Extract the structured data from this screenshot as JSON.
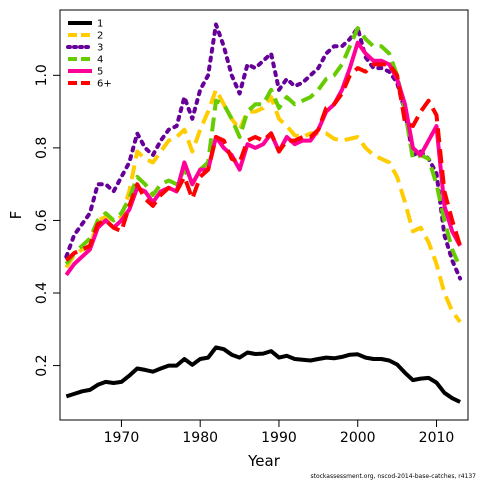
{
  "chart_data": {
    "type": "line",
    "xlabel": "Year",
    "ylabel": "F",
    "xlim": [
      1962.2,
      2014.0
    ],
    "ylim": [
      0.05,
      1.18
    ],
    "x_ticks": [
      1970,
      1980,
      1990,
      2000,
      2010
    ],
    "y_ticks": [
      0.2,
      0.4,
      0.6,
      0.8,
      1.0
    ],
    "x_tick_labels": [
      "1970",
      "1980",
      "1990",
      "2000",
      "2010"
    ],
    "y_tick_labels": [
      "0.2",
      "0.4",
      "0.6",
      "0.8",
      "1.0"
    ],
    "legend_position": "top-left",
    "footnote": "stockassessment.org, nscod-2014-base-catches, r4137",
    "x": [
      1963,
      1964,
      1965,
      1966,
      1967,
      1968,
      1969,
      1970,
      1971,
      1972,
      1973,
      1974,
      1975,
      1976,
      1977,
      1978,
      1979,
      1980,
      1981,
      1982,
      1983,
      1984,
      1985,
      1986,
      1987,
      1988,
      1989,
      1990,
      1991,
      1992,
      1993,
      1994,
      1995,
      1996,
      1997,
      1998,
      1999,
      2000,
      2001,
      2002,
      2003,
      2004,
      2005,
      2006,
      2007,
      2008,
      2009,
      2010,
      2011,
      2012,
      2013
    ],
    "series": [
      {
        "name": "1",
        "color": "#000000",
        "dash": "solid",
        "values": [
          0.115,
          0.122,
          0.129,
          0.133,
          0.147,
          0.155,
          0.152,
          0.155,
          0.172,
          0.192,
          0.188,
          0.183,
          0.192,
          0.2,
          0.2,
          0.218,
          0.202,
          0.218,
          0.222,
          0.25,
          0.245,
          0.23,
          0.222,
          0.236,
          0.232,
          0.233,
          0.24,
          0.222,
          0.227,
          0.218,
          0.216,
          0.214,
          0.218,
          0.222,
          0.22,
          0.224,
          0.23,
          0.231,
          0.222,
          0.218,
          0.218,
          0.214,
          0.203,
          0.18,
          0.16,
          0.164,
          0.166,
          0.153,
          0.125,
          0.11,
          0.1
        ]
      },
      {
        "name": "2",
        "color": "#ffcc00",
        "dash": "dashed",
        "values": [
          0.47,
          0.505,
          0.52,
          0.525,
          0.6,
          0.61,
          0.6,
          0.61,
          0.68,
          0.79,
          0.77,
          0.76,
          0.79,
          0.82,
          0.83,
          0.85,
          0.79,
          0.85,
          0.9,
          0.96,
          0.92,
          0.88,
          0.85,
          0.9,
          0.9,
          0.91,
          0.94,
          0.88,
          0.86,
          0.835,
          0.83,
          0.84,
          0.84,
          0.84,
          0.825,
          0.82,
          0.825,
          0.83,
          0.8,
          0.78,
          0.77,
          0.76,
          0.72,
          0.65,
          0.57,
          0.58,
          0.54,
          0.48,
          0.4,
          0.35,
          0.32
        ]
      },
      {
        "name": "3",
        "color": "#660099",
        "dash": "dotted",
        "values": [
          0.5,
          0.56,
          0.59,
          0.62,
          0.7,
          0.7,
          0.68,
          0.72,
          0.76,
          0.84,
          0.8,
          0.78,
          0.82,
          0.85,
          0.86,
          0.94,
          0.88,
          0.96,
          1.0,
          1.14,
          1.08,
          1.0,
          0.95,
          1.03,
          1.02,
          1.04,
          1.06,
          0.96,
          0.99,
          0.97,
          0.98,
          1.0,
          1.02,
          1.06,
          1.08,
          1.08,
          1.1,
          1.13,
          1.05,
          1.02,
          1.02,
          1.01,
          0.98,
          0.9,
          0.78,
          0.79,
          0.77,
          0.73,
          0.56,
          0.49,
          0.44
        ]
      },
      {
        "name": "4",
        "color": "#66cc00",
        "dash": "dashed",
        "values": [
          0.48,
          0.51,
          0.53,
          0.55,
          0.6,
          0.62,
          0.6,
          0.62,
          0.66,
          0.72,
          0.7,
          0.67,
          0.7,
          0.71,
          0.7,
          0.74,
          0.7,
          0.74,
          0.76,
          0.93,
          0.92,
          0.88,
          0.83,
          0.9,
          0.92,
          0.92,
          0.96,
          0.91,
          0.94,
          0.92,
          0.93,
          0.94,
          0.96,
          0.99,
          1.0,
          1.03,
          1.08,
          1.13,
          1.1,
          1.08,
          1.08,
          1.06,
          1.0,
          0.9,
          0.77,
          0.78,
          0.77,
          0.7,
          0.6,
          0.52,
          0.47
        ]
      },
      {
        "name": "5",
        "color": "#ff0099",
        "dash": "solid",
        "values": [
          0.45,
          0.48,
          0.5,
          0.52,
          0.58,
          0.6,
          0.58,
          0.6,
          0.63,
          0.69,
          0.68,
          0.65,
          0.68,
          0.69,
          0.68,
          0.76,
          0.7,
          0.74,
          0.74,
          0.83,
          0.8,
          0.78,
          0.74,
          0.81,
          0.8,
          0.81,
          0.84,
          0.79,
          0.83,
          0.81,
          0.82,
          0.82,
          0.85,
          0.9,
          0.92,
          0.96,
          1.02,
          1.09,
          1.06,
          1.04,
          1.04,
          1.03,
          0.99,
          0.92,
          0.8,
          0.78,
          0.82,
          0.86,
          0.64,
          0.57,
          0.53
        ]
      },
      {
        "name": "6+",
        "color": "#ff0000",
        "dash": "dashed",
        "values": [
          0.49,
          0.51,
          0.52,
          0.53,
          0.59,
          0.6,
          0.58,
          0.57,
          0.64,
          0.7,
          0.66,
          0.64,
          0.67,
          0.69,
          0.68,
          0.72,
          0.66,
          0.72,
          0.74,
          0.83,
          0.82,
          0.77,
          0.76,
          0.82,
          0.83,
          0.82,
          0.84,
          0.79,
          0.82,
          0.82,
          0.83,
          0.83,
          0.85,
          0.91,
          0.92,
          0.95,
          1.0,
          1.02,
          1.01,
          1.03,
          1.03,
          1.03,
          1.0,
          0.87,
          0.86,
          0.9,
          0.93,
          0.89,
          0.68,
          0.6,
          0.53
        ]
      }
    ]
  }
}
